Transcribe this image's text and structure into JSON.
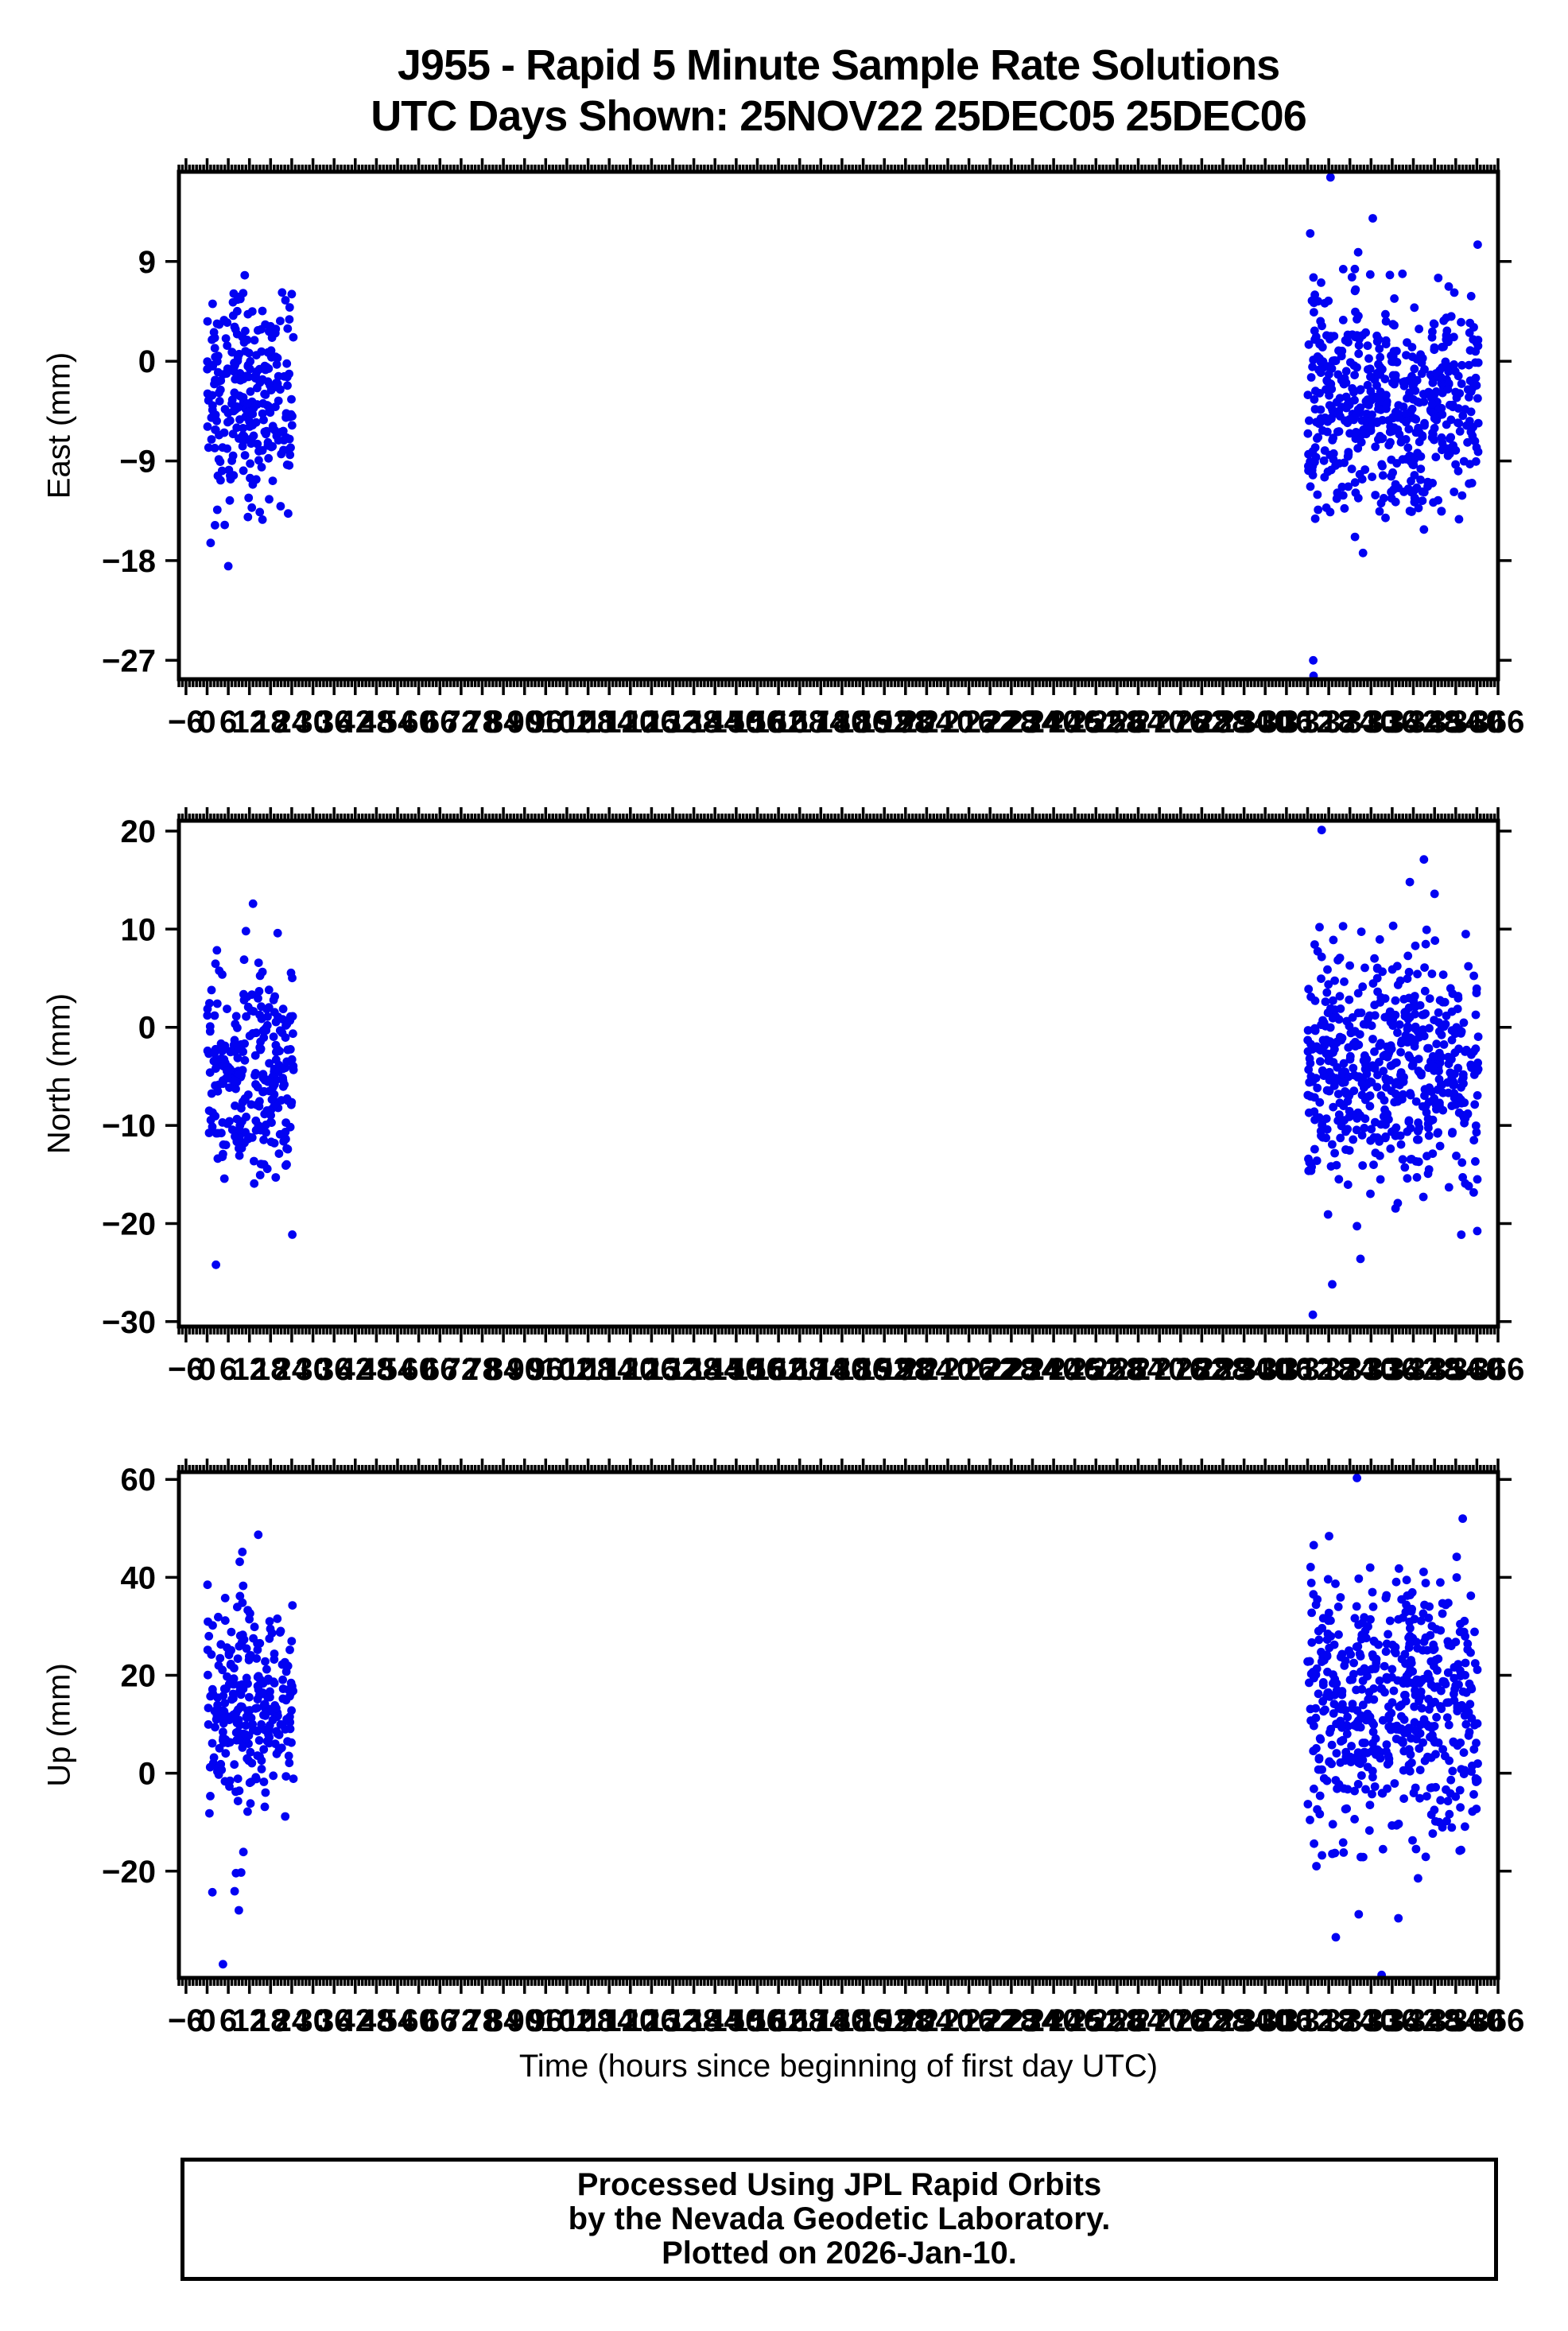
{
  "title": {
    "line1": "J955 - Rapid 5 Minute Sample Rate Solutions",
    "line2": "UTC Days Shown:  25NOV22 25DEC05 25DEC06"
  },
  "xaxis": {
    "label": "Time (hours since beginning of first day UTC)",
    "min": -8,
    "max": 366,
    "minor_step": 1,
    "tick_step": 6,
    "tick_labels": [
      -6,
      0,
      6,
      12,
      18,
      24,
      30,
      36,
      42,
      48,
      54,
      60,
      66,
      72,
      78,
      84,
      90,
      96,
      102,
      108,
      114,
      120,
      126,
      132,
      138,
      144,
      150,
      156,
      162,
      168,
      174,
      180,
      186,
      192,
      198,
      204,
      210,
      216,
      222,
      228,
      234,
      240,
      246,
      252,
      258,
      264,
      270,
      276,
      282,
      288,
      294,
      300,
      306,
      312,
      318,
      324,
      330,
      336,
      342,
      348,
      354,
      360,
      366
    ]
  },
  "style": {
    "point_color": "#0202f2",
    "axis_color": "#000000",
    "background": "#ffffff"
  },
  "footer": {
    "lines": [
      "Processed Using JPL Rapid Orbits",
      "by the Nevada Geodetic Laboratory.",
      "Plotted on 2026-Jan-10."
    ]
  },
  "chart_data": [
    {
      "type": "scatter",
      "name": "east",
      "ylabel": "East (mm)",
      "ylim": [
        -28.7,
        17.1
      ],
      "yticks": [
        9,
        0,
        -9,
        -18,
        -27
      ],
      "grid": false,
      "legend": null,
      "clusters": [
        {
          "x_range": [
            0,
            24.5
          ],
          "count": 268,
          "mean": -3.6,
          "sd": 4.3,
          "clamp": [
            -13.5,
            7.5
          ],
          "tail_frac": 0.11,
          "tail_sd": 7.5,
          "tail_clamp": [
            -18.6,
            8.4
          ],
          "seed": 11
        },
        {
          "x_range": [
            312,
            360.5
          ],
          "count": 545,
          "mean": -4.0,
          "sd": 5.0,
          "clamp": [
            -14.5,
            9.5
          ],
          "tail_frac": 0.1,
          "tail_sd": 8.0,
          "tail_clamp": [
            -18.8,
            12.5
          ],
          "seed": 12
        }
      ],
      "outliers": [
        [
          318.5,
          16.6
        ],
        [
          330.5,
          12.9
        ],
        [
          313.6,
          -27.0
        ],
        [
          313.7,
          -28.4
        ],
        [
          6,
          -18.5
        ],
        [
          1,
          -16.4
        ],
        [
          15.7,
          -14.3
        ]
      ]
    },
    {
      "type": "scatter",
      "name": "north",
      "ylabel": "North (mm)",
      "ylim": [
        -30.5,
        21.05
      ],
      "yticks": [
        20,
        10,
        0,
        -10,
        -20,
        -30
      ],
      "grid": false,
      "legend": null,
      "clusters": [
        {
          "x_range": [
            0,
            24.5
          ],
          "count": 268,
          "mean": -5.2,
          "sd": 5.6,
          "clamp": [
            -16.5,
            8.0
          ],
          "tail_frac": 0.14,
          "tail_sd": 9.5,
          "tail_clamp": [
            -22.0,
            12.5
          ],
          "seed": 21
        },
        {
          "x_range": [
            312,
            360.5
          ],
          "count": 545,
          "mean": -4.5,
          "sd": 6.0,
          "clamp": [
            -17.0,
            9.0
          ],
          "tail_frac": 0.12,
          "tail_sd": 9.5,
          "tail_clamp": [
            -22.5,
            13.0
          ],
          "seed": 22
        }
      ],
      "outliers": [
        [
          13,
          12.6
        ],
        [
          11,
          9.8
        ],
        [
          20,
          9.6
        ],
        [
          2.5,
          -24.2
        ],
        [
          316,
          20.1
        ],
        [
          345,
          17.1
        ],
        [
          341,
          14.8
        ],
        [
          348,
          13.6
        ],
        [
          313.5,
          -29.3
        ],
        [
          319,
          -26.2
        ],
        [
          327,
          -23.6
        ]
      ]
    },
    {
      "type": "scatter",
      "name": "up",
      "ylabel": "Up (mm)",
      "ylim": [
        -41.8,
        61.5
      ],
      "yticks": [
        60,
        40,
        20,
        0,
        -20
      ],
      "grid": false,
      "legend": null,
      "clusters": [
        {
          "x_range": [
            0,
            24.5
          ],
          "count": 268,
          "mean": 14.5,
          "sd": 11.5,
          "clamp": [
            -10.0,
            38.5
          ],
          "tail_frac": 0.15,
          "tail_sd": 17.0,
          "tail_clamp": [
            -29.0,
            49.0
          ],
          "seed": 31
        },
        {
          "x_range": [
            312,
            360.5
          ],
          "count": 545,
          "mean": 13.0,
          "sd": 13.0,
          "clamp": [
            -18.0,
            42.0
          ],
          "tail_frac": 0.12,
          "tail_sd": 19.0,
          "tail_clamp": [
            -35.0,
            52.0
          ],
          "seed": 32
        }
      ],
      "outliers": [
        [
          14.5,
          48.7
        ],
        [
          10,
          45.2
        ],
        [
          1.5,
          -24.3
        ],
        [
          9,
          -28
        ],
        [
          4.5,
          -39
        ],
        [
          326,
          60.3
        ],
        [
          356,
          52
        ],
        [
          326.5,
          -28.8
        ],
        [
          320,
          -33.5
        ],
        [
          333,
          -41.2
        ]
      ]
    }
  ]
}
